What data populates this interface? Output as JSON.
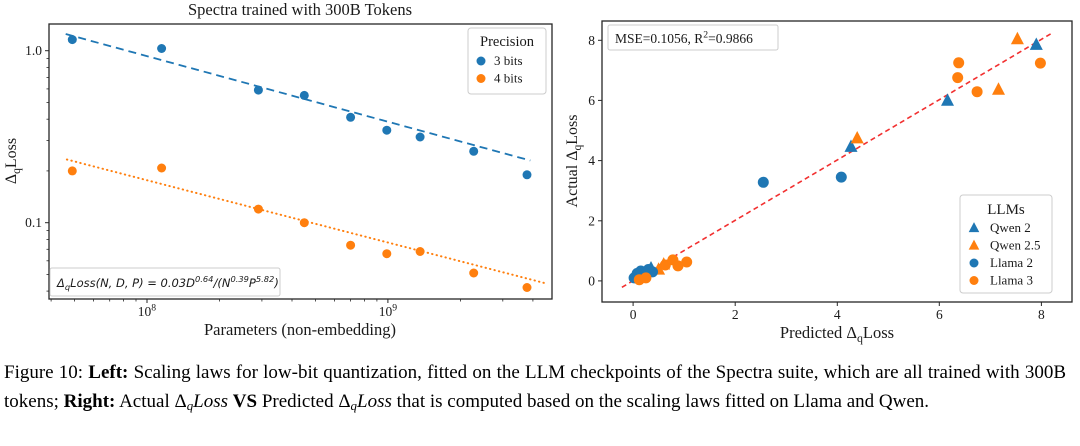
{
  "colors": {
    "blue": "#1f77b4",
    "orange": "#ff7f0e",
    "red": "#f23030",
    "frame": "#262626",
    "text": "#1a1a1a",
    "legend_border": "#cccccc"
  },
  "caption": {
    "segments": [
      {
        "text": "Figure 10: "
      },
      {
        "text": "Left:",
        "bold": true
      },
      {
        "text": " Scaling laws for low-bit quantization, fitted on the LLM checkpoints of the Spectra suite, which are all trained with 300B tokens; "
      },
      {
        "text": "Right:",
        "bold": true
      },
      {
        "text": " Actual "
      },
      {
        "text": "Δ"
      },
      {
        "text": "q",
        "sub": true
      },
      {
        "text": "Loss",
        "italic": true
      },
      {
        "text": " "
      },
      {
        "text": "VS",
        "bold": true
      },
      {
        "text": " Predicted "
      },
      {
        "text": "Δ"
      },
      {
        "text": "q",
        "sub": true
      },
      {
        "text": "Loss",
        "italic": true
      },
      {
        "text": " that is computed based on the scaling laws fitted on Llama and Qwen."
      }
    ]
  },
  "chart_data": [
    {
      "id": "left",
      "type": "scatter",
      "title": "Spectra trained with 300B Tokens",
      "xlabel_segments": [
        {
          "text": "Parameters (non-embedding)"
        }
      ],
      "ylabel_segments": [
        {
          "text": "Δ"
        },
        {
          "text": "q",
          "kind": "sub"
        },
        {
          "text": "Loss"
        }
      ],
      "xscale": "log",
      "yscale": "log",
      "xlim": [
        39200000.0,
        4800000000.0
      ],
      "ylim": [
        0.036,
        1.43
      ],
      "xticks": [
        {
          "v": 100000000.0,
          "segments": [
            {
              "text": "10"
            },
            {
              "text": "8",
              "kind": "sup"
            }
          ]
        },
        {
          "v": 1000000000.0,
          "segments": [
            {
              "text": "10"
            },
            {
              "text": "9",
              "kind": "sup"
            }
          ]
        }
      ],
      "yticks": [
        {
          "v": 1.0,
          "label": "1.0"
        },
        {
          "v": 0.1,
          "label": "0.1"
        }
      ],
      "annotation_segments": [
        {
          "text": "Δ"
        },
        {
          "text": "q",
          "kind": "sub"
        },
        {
          "text": "Loss(N, D, P) = 0.03D"
        },
        {
          "text": "0.64",
          "kind": "sup"
        },
        {
          "text": "/(N"
        },
        {
          "text": "0.39",
          "kind": "sup"
        },
        {
          "text": "P"
        },
        {
          "text": "5.82",
          "kind": "sup"
        },
        {
          "text": ")"
        }
      ],
      "legend": {
        "title": "Precision",
        "entries": [
          {
            "label": "3 bits",
            "color": "blue",
            "marker": "circle"
          },
          {
            "label": "4 bits",
            "color": "orange",
            "marker": "circle"
          }
        ]
      },
      "series": [
        {
          "name": "3 bits",
          "color": "blue",
          "marker": "circle",
          "size": 4.5,
          "points": [
            [
              49000000.0,
              1.16
            ],
            [
              115000000.0,
              1.03
            ],
            [
              290000000.0,
              0.59
            ],
            [
              450000000.0,
              0.55
            ],
            [
              700000000.0,
              0.41
            ],
            [
              990000000.0,
              0.345
            ],
            [
              1360000000.0,
              0.315
            ],
            [
              2270000000.0,
              0.26
            ],
            [
              3780000000.0,
              0.19
            ]
          ]
        },
        {
          "name": "4 bits",
          "color": "orange",
          "marker": "circle",
          "size": 4.5,
          "points": [
            [
              49000000.0,
              0.2
            ],
            [
              115000000.0,
              0.208
            ],
            [
              290000000.0,
              0.12
            ],
            [
              450000000.0,
              0.1
            ],
            [
              700000000.0,
              0.074
            ],
            [
              990000000.0,
              0.066
            ],
            [
              1360000000.0,
              0.068
            ],
            [
              2270000000.0,
              0.051
            ],
            [
              3780000000.0,
              0.042
            ]
          ]
        }
      ],
      "trend_lines": [
        {
          "name": "fit-3-bits",
          "color": "blue",
          "dash": "8 5",
          "width": 1.8,
          "from": [
            46000000.0,
            1.25
          ],
          "to": [
            3900000000.0,
            0.23
          ]
        },
        {
          "name": "fit-4-bits",
          "color": "orange",
          "dash": "0.4 4.2",
          "cap": "round",
          "width": 2.0,
          "from": [
            46500000.0,
            0.233
          ],
          "to": [
            4500000000.0,
            0.0445
          ]
        }
      ]
    },
    {
      "id": "right",
      "type": "scatter",
      "title": "",
      "xlabel_segments": [
        {
          "text": "Predicted Δ"
        },
        {
          "text": "q",
          "kind": "sub"
        },
        {
          "text": "Loss"
        }
      ],
      "ylabel_segments": [
        {
          "text": "Actual Δ"
        },
        {
          "text": "q",
          "kind": "sub"
        },
        {
          "text": "Loss"
        }
      ],
      "xscale": "linear",
      "yscale": "linear",
      "xlim": [
        -0.61,
        8.6
      ],
      "ylim": [
        -0.7,
        8.64
      ],
      "xticks": [
        {
          "v": 0,
          "label": "0"
        },
        {
          "v": 2,
          "label": "2"
        },
        {
          "v": 4,
          "label": "4"
        },
        {
          "v": 6,
          "label": "6"
        },
        {
          "v": 8,
          "label": "8"
        }
      ],
      "yticks": [
        {
          "v": 0,
          "label": "0"
        },
        {
          "v": 2,
          "label": "2"
        },
        {
          "v": 4,
          "label": "4"
        },
        {
          "v": 6,
          "label": "6"
        },
        {
          "v": 8,
          "label": "8"
        }
      ],
      "annotation_segments": [
        {
          "text": "MSE=0.1056, R"
        },
        {
          "text": "2",
          "kind": "sup"
        },
        {
          "text": "=0.9866"
        }
      ],
      "legend": {
        "title": "LLMs",
        "entries": [
          {
            "label": "Qwen 2",
            "color": "blue",
            "marker": "triangle"
          },
          {
            "label": "Qwen 2.5",
            "color": "orange",
            "marker": "triangle"
          },
          {
            "label": "Llama 2",
            "color": "blue",
            "marker": "circle"
          },
          {
            "label": "Llama 3",
            "color": "orange",
            "marker": "circle"
          }
        ]
      },
      "series": [
        {
          "name": "Qwen 2",
          "color": "blue",
          "marker": "triangle",
          "size": 5.5,
          "points": [
            [
              0.12,
              0.2
            ],
            [
              0.35,
              0.42
            ],
            [
              4.27,
              4.46
            ],
            [
              6.16,
              5.99
            ],
            [
              7.9,
              7.85
            ]
          ]
        },
        {
          "name": "Qwen 2.5",
          "color": "orange",
          "marker": "triangle",
          "size": 5.5,
          "points": [
            [
              0.5,
              0.38
            ],
            [
              0.6,
              0.55
            ],
            [
              4.39,
              4.74
            ],
            [
              7.16,
              6.36
            ],
            [
              7.53,
              8.04
            ]
          ]
        },
        {
          "name": "Llama 2",
          "color": "blue",
          "marker": "circle",
          "size": 5.5,
          "points": [
            [
              0.02,
              0.1
            ],
            [
              0.08,
              0.25
            ],
            [
              0.15,
              0.33
            ],
            [
              0.22,
              0.2
            ],
            [
              0.3,
              0.38
            ],
            [
              0.38,
              0.3
            ],
            [
              2.55,
              3.28
            ],
            [
              4.08,
              3.45
            ]
          ]
        },
        {
          "name": "Llama 3",
          "color": "orange",
          "marker": "circle",
          "size": 5.5,
          "points": [
            [
              0.12,
              0.04
            ],
            [
              0.25,
              0.1
            ],
            [
              0.63,
              0.53
            ],
            [
              0.78,
              0.7
            ],
            [
              0.88,
              0.5
            ],
            [
              1.05,
              0.63
            ],
            [
              6.36,
              6.76
            ],
            [
              6.38,
              7.25
            ],
            [
              6.74,
              6.29
            ],
            [
              7.98,
              7.24
            ]
          ]
        }
      ],
      "trend_lines": [
        {
          "name": "identity-fit-line",
          "color": "red",
          "dash": "5 3.5",
          "width": 1.6,
          "from": [
            -0.22,
            -0.21
          ],
          "to": [
            8.22,
            8.25
          ]
        }
      ]
    }
  ]
}
